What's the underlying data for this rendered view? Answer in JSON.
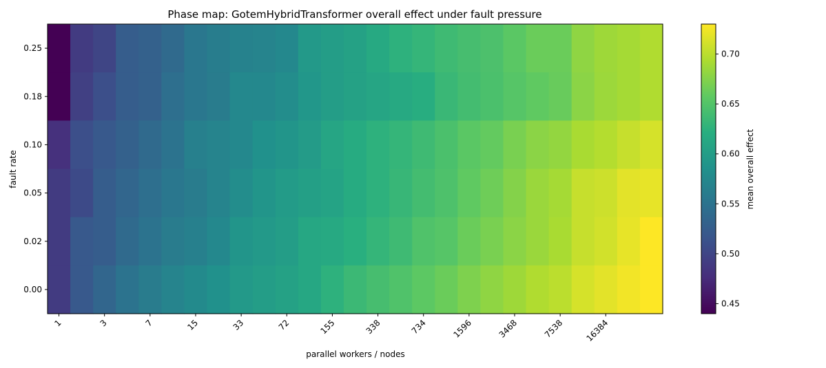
{
  "chart_data": {
    "type": "heatmap",
    "title": "Phase map: GotemHybridTransformer overall effect under fault pressure",
    "xlabel": "parallel workers / nodes",
    "ylabel": "fault rate",
    "x_tick_labels": [
      "1",
      "3",
      "7",
      "15",
      "33",
      "72",
      "155",
      "338",
      "734",
      "1596",
      "3468",
      "7538",
      "16384"
    ],
    "y_tick_labels": [
      "0.25",
      "0.18",
      "0.10",
      "0.05",
      "0.02",
      "0.00"
    ],
    "colorbar": {
      "label": "mean overall effect",
      "colormap": "viridis",
      "range": [
        0.44,
        0.73
      ],
      "ticks": [
        0.45,
        0.5,
        0.55,
        0.6,
        0.65,
        0.7
      ],
      "tick_labels": [
        "0.45",
        "0.50",
        "0.55",
        "0.60",
        "0.65",
        "0.70"
      ]
    },
    "grid": false,
    "rows": [
      {
        "fault_rate": "0.25",
        "values": [
          0.44,
          0.49,
          0.5,
          0.525,
          0.53,
          0.54,
          0.555,
          0.562,
          0.567,
          0.57,
          0.575,
          0.595,
          0.6,
          0.605,
          0.615,
          0.625,
          0.63,
          0.637,
          0.642,
          0.646,
          0.655,
          0.663,
          0.663,
          0.68,
          0.687,
          0.69,
          0.695
        ]
      },
      {
        "fault_rate": "0.18",
        "values": [
          0.44,
          0.495,
          0.51,
          0.525,
          0.53,
          0.545,
          0.555,
          0.56,
          0.575,
          0.575,
          0.58,
          0.592,
          0.6,
          0.605,
          0.61,
          0.615,
          0.62,
          0.633,
          0.64,
          0.645,
          0.652,
          0.658,
          0.662,
          0.678,
          0.686,
          0.69,
          0.695
        ]
      },
      {
        "fault_rate": "0.10",
        "values": [
          0.48,
          0.51,
          0.52,
          0.53,
          0.54,
          0.55,
          0.565,
          0.57,
          0.575,
          0.585,
          0.59,
          0.598,
          0.61,
          0.618,
          0.625,
          0.63,
          0.637,
          0.645,
          0.655,
          0.66,
          0.67,
          0.678,
          0.682,
          0.692,
          0.697,
          0.705,
          0.712
        ]
      },
      {
        "fault_rate": "0.05",
        "values": [
          0.49,
          0.505,
          0.525,
          0.535,
          0.545,
          0.555,
          0.56,
          0.57,
          0.58,
          0.59,
          0.597,
          0.603,
          0.607,
          0.618,
          0.625,
          0.632,
          0.64,
          0.647,
          0.658,
          0.665,
          0.675,
          0.685,
          0.69,
          0.705,
          0.708,
          0.718,
          0.72
        ]
      },
      {
        "fault_rate": "0.02",
        "values": [
          0.49,
          0.52,
          0.525,
          0.54,
          0.55,
          0.56,
          0.565,
          0.575,
          0.59,
          0.595,
          0.6,
          0.612,
          0.615,
          0.622,
          0.63,
          0.637,
          0.648,
          0.652,
          0.663,
          0.67,
          0.678,
          0.685,
          0.692,
          0.705,
          0.71,
          0.72,
          0.73
        ]
      },
      {
        "fault_rate": "0.00",
        "values": [
          0.49,
          0.52,
          0.535,
          0.55,
          0.56,
          0.57,
          0.577,
          0.585,
          0.595,
          0.6,
          0.605,
          0.612,
          0.625,
          0.635,
          0.642,
          0.648,
          0.656,
          0.663,
          0.672,
          0.68,
          0.687,
          0.695,
          0.7,
          0.712,
          0.718,
          0.725,
          0.73
        ]
      }
    ]
  }
}
